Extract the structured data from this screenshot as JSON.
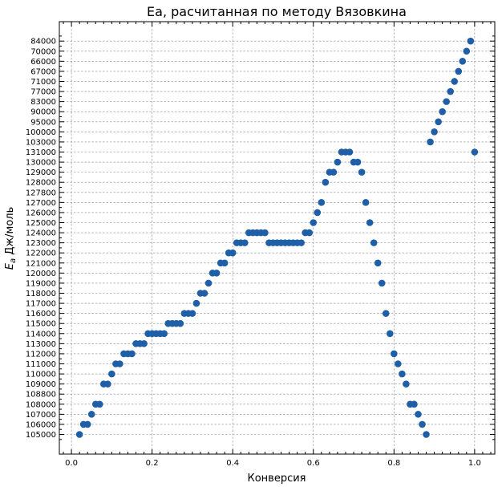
{
  "chart_data": {
    "type": "scatter",
    "title": "Ea, расчитанная по методу Вязовкина",
    "xlabel": "Конверсия",
    "ylabel_prefix": "E",
    "ylabel_sub": "a",
    "ylabel_suffix": " Дж/моль",
    "xlim": [
      -0.03,
      1.05
    ],
    "x_ticks": [
      "0.0",
      "0.2",
      "0.4",
      "0.6",
      "0.8",
      "1.0"
    ],
    "x_tick_values": [
      0.0,
      0.2,
      0.4,
      0.6,
      0.8,
      1.0
    ],
    "y_categories": [
      "105000",
      "106000",
      "107000",
      "108000",
      "108800",
      "109000",
      "110000",
      "111000",
      "112000",
      "113000",
      "114000",
      "115000",
      "116000",
      "117000",
      "118000",
      "119000",
      "120000",
      "121000",
      "122000",
      "123000",
      "124000",
      "125000",
      "126000",
      "127000",
      "127800",
      "128000",
      "129000",
      "130000",
      "131000",
      "103000",
      "100000",
      "95000",
      "90000",
      "83000",
      "77000",
      "71000",
      "67000",
      "66000",
      "70000",
      "84000"
    ],
    "grid": true,
    "marker_color": "#1f5fa8",
    "points": [
      {
        "x": 0.02,
        "y": "105000"
      },
      {
        "x": 0.03,
        "y": "106000"
      },
      {
        "x": 0.04,
        "y": "106000"
      },
      {
        "x": 0.05,
        "y": "107000"
      },
      {
        "x": 0.06,
        "y": "108000"
      },
      {
        "x": 0.07,
        "y": "108000"
      },
      {
        "x": 0.08,
        "y": "109000"
      },
      {
        "x": 0.09,
        "y": "109000"
      },
      {
        "x": 0.1,
        "y": "110000"
      },
      {
        "x": 0.11,
        "y": "111000"
      },
      {
        "x": 0.12,
        "y": "111000"
      },
      {
        "x": 0.13,
        "y": "112000"
      },
      {
        "x": 0.14,
        "y": "112000"
      },
      {
        "x": 0.15,
        "y": "112000"
      },
      {
        "x": 0.16,
        "y": "113000"
      },
      {
        "x": 0.17,
        "y": "113000"
      },
      {
        "x": 0.18,
        "y": "113000"
      },
      {
        "x": 0.19,
        "y": "114000"
      },
      {
        "x": 0.2,
        "y": "114000"
      },
      {
        "x": 0.21,
        "y": "114000"
      },
      {
        "x": 0.22,
        "y": "114000"
      },
      {
        "x": 0.23,
        "y": "114000"
      },
      {
        "x": 0.24,
        "y": "115000"
      },
      {
        "x": 0.25,
        "y": "115000"
      },
      {
        "x": 0.26,
        "y": "115000"
      },
      {
        "x": 0.27,
        "y": "115000"
      },
      {
        "x": 0.28,
        "y": "116000"
      },
      {
        "x": 0.29,
        "y": "116000"
      },
      {
        "x": 0.3,
        "y": "116000"
      },
      {
        "x": 0.31,
        "y": "117000"
      },
      {
        "x": 0.32,
        "y": "118000"
      },
      {
        "x": 0.33,
        "y": "118000"
      },
      {
        "x": 0.34,
        "y": "119000"
      },
      {
        "x": 0.35,
        "y": "120000"
      },
      {
        "x": 0.36,
        "y": "120000"
      },
      {
        "x": 0.37,
        "y": "121000"
      },
      {
        "x": 0.38,
        "y": "121000"
      },
      {
        "x": 0.39,
        "y": "122000"
      },
      {
        "x": 0.4,
        "y": "122000"
      },
      {
        "x": 0.41,
        "y": "123000"
      },
      {
        "x": 0.42,
        "y": "123000"
      },
      {
        "x": 0.43,
        "y": "123000"
      },
      {
        "x": 0.44,
        "y": "124000"
      },
      {
        "x": 0.45,
        "y": "124000"
      },
      {
        "x": 0.46,
        "y": "124000"
      },
      {
        "x": 0.47,
        "y": "124000"
      },
      {
        "x": 0.48,
        "y": "124000"
      },
      {
        "x": 0.49,
        "y": "123000"
      },
      {
        "x": 0.5,
        "y": "123000"
      },
      {
        "x": 0.51,
        "y": "123000"
      },
      {
        "x": 0.52,
        "y": "123000"
      },
      {
        "x": 0.53,
        "y": "123000"
      },
      {
        "x": 0.54,
        "y": "123000"
      },
      {
        "x": 0.55,
        "y": "123000"
      },
      {
        "x": 0.56,
        "y": "123000"
      },
      {
        "x": 0.57,
        "y": "123000"
      },
      {
        "x": 0.58,
        "y": "124000"
      },
      {
        "x": 0.59,
        "y": "124000"
      },
      {
        "x": 0.6,
        "y": "125000"
      },
      {
        "x": 0.61,
        "y": "126000"
      },
      {
        "x": 0.62,
        "y": "127000"
      },
      {
        "x": 0.63,
        "y": "128000"
      },
      {
        "x": 0.64,
        "y": "129000"
      },
      {
        "x": 0.65,
        "y": "129000"
      },
      {
        "x": 0.66,
        "y": "130000"
      },
      {
        "x": 0.67,
        "y": "131000"
      },
      {
        "x": 0.68,
        "y": "131000"
      },
      {
        "x": 0.69,
        "y": "131000"
      },
      {
        "x": 0.7,
        "y": "130000"
      },
      {
        "x": 0.71,
        "y": "130000"
      },
      {
        "x": 0.72,
        "y": "129000"
      },
      {
        "x": 0.73,
        "y": "127000"
      },
      {
        "x": 0.74,
        "y": "125000"
      },
      {
        "x": 0.75,
        "y": "123000"
      },
      {
        "x": 0.76,
        "y": "121000"
      },
      {
        "x": 0.77,
        "y": "119000"
      },
      {
        "x": 0.78,
        "y": "116000"
      },
      {
        "x": 0.79,
        "y": "114000"
      },
      {
        "x": 0.8,
        "y": "112000"
      },
      {
        "x": 0.81,
        "y": "111000"
      },
      {
        "x": 0.82,
        "y": "110000"
      },
      {
        "x": 0.83,
        "y": "109000"
      },
      {
        "x": 0.84,
        "y": "108000"
      },
      {
        "x": 0.85,
        "y": "108000"
      },
      {
        "x": 0.86,
        "y": "107000"
      },
      {
        "x": 0.87,
        "y": "106000"
      },
      {
        "x": 0.88,
        "y": "105000"
      },
      {
        "x": 0.89,
        "y": "103000"
      },
      {
        "x": 0.9,
        "y": "100000"
      },
      {
        "x": 0.91,
        "y": "95000"
      },
      {
        "x": 0.92,
        "y": "90000"
      },
      {
        "x": 0.93,
        "y": "83000"
      },
      {
        "x": 0.94,
        "y": "77000"
      },
      {
        "x": 0.95,
        "y": "71000"
      },
      {
        "x": 0.96,
        "y": "67000"
      },
      {
        "x": 0.97,
        "y": "66000"
      },
      {
        "x": 0.98,
        "y": "70000"
      },
      {
        "x": 0.99,
        "y": "84000"
      },
      {
        "x": 1.0,
        "y": "131000"
      }
    ]
  }
}
